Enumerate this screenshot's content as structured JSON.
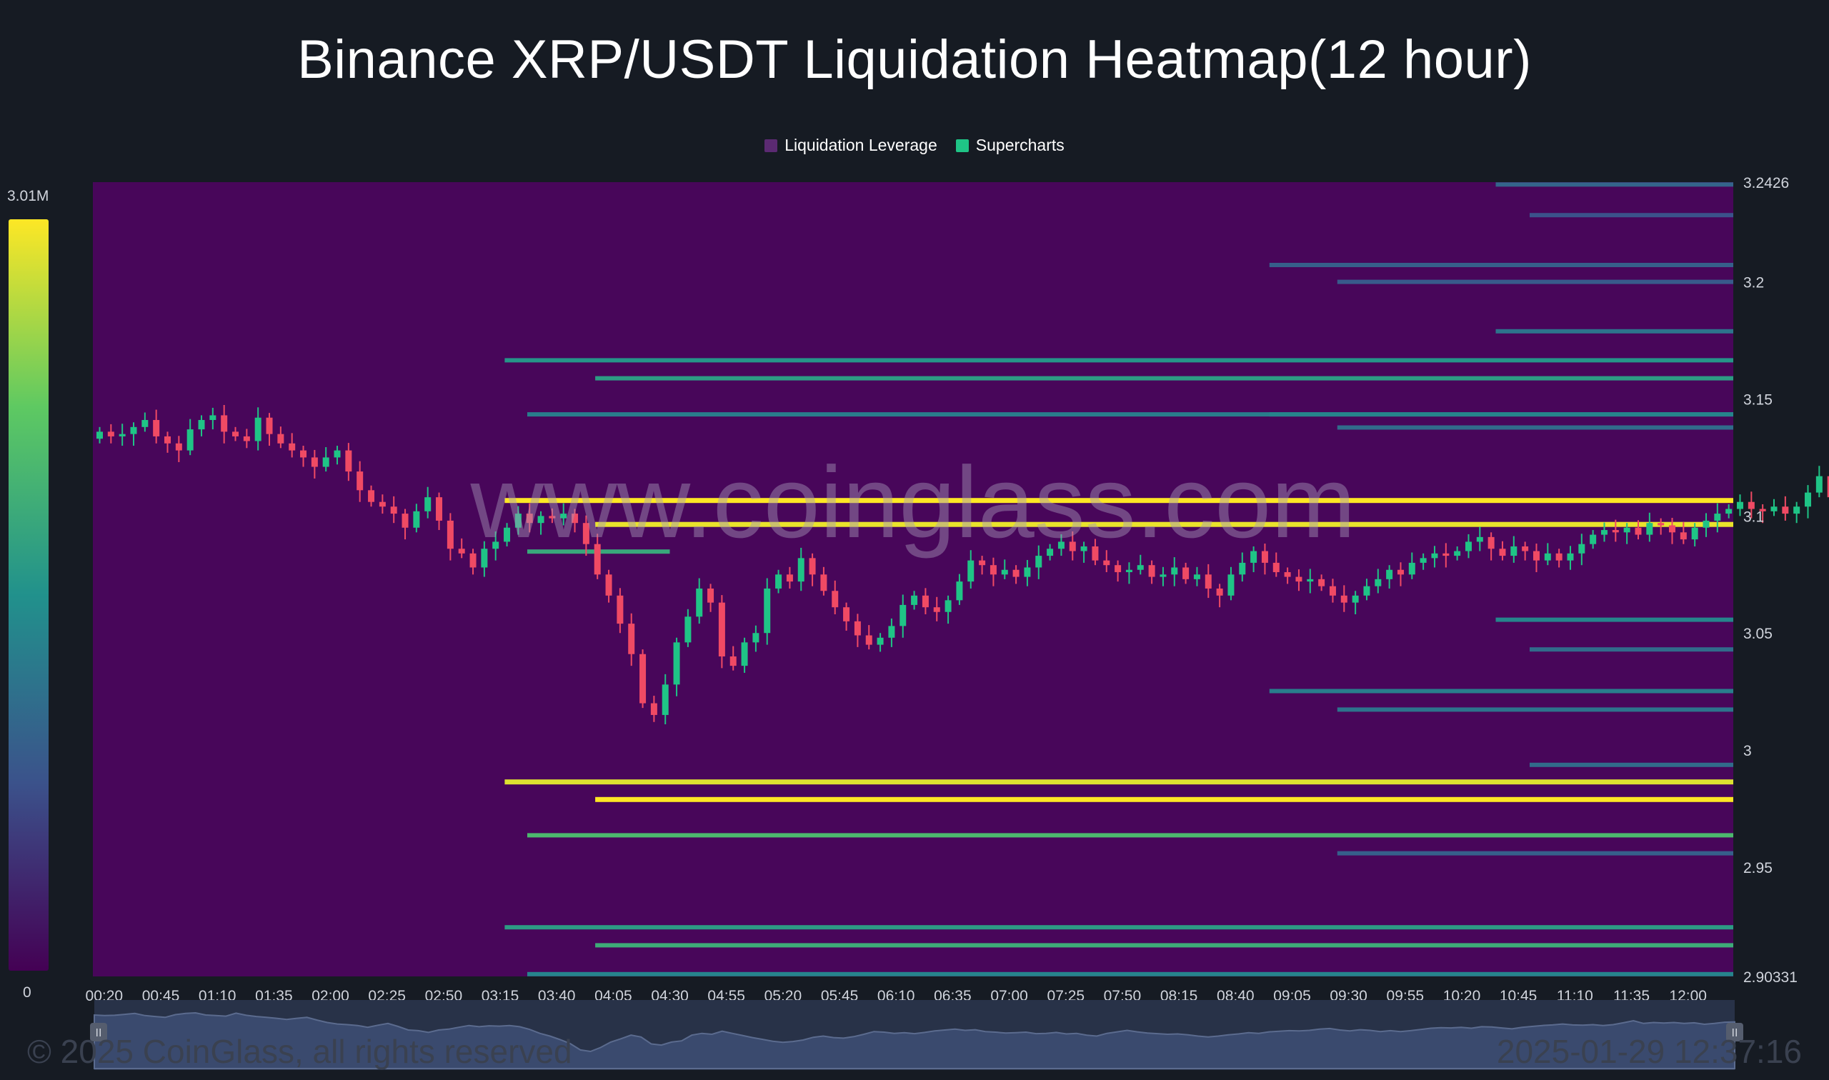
{
  "title": "Binance XRP/USDT Liquidation Heatmap(12 hour)",
  "legend": [
    {
      "label": "Liquidation Leverage",
      "color": "#5b2a72"
    },
    {
      "label": "Supercharts",
      "color": "#1fc486"
    }
  ],
  "colorbar": {
    "max_label": "3.01M",
    "min_label": "0"
  },
  "watermark": "www.coinglass.com",
  "footer": {
    "copyright": "© 2025 CoinGlass, all rights reserved",
    "timestamp": "2025-01-29 12:37:16"
  },
  "colors": {
    "background": "#161b23",
    "heatmap_base": "#48065a",
    "up_candle": "#1fc486",
    "down_candle": "#f04a64"
  },
  "chart_data": {
    "type": "heatmap",
    "title": "Binance XRP/USDT Liquidation Heatmap(12 hour)",
    "x_ticks": [
      "00:20",
      "00:45",
      "01:10",
      "01:35",
      "02:00",
      "02:25",
      "02:50",
      "03:15",
      "03:40",
      "04:05",
      "04:30",
      "04:55",
      "05:20",
      "05:45",
      "06:10",
      "06:35",
      "07:00",
      "07:25",
      "07:50",
      "08:15",
      "08:40",
      "09:05",
      "09:30",
      "09:55",
      "10:20",
      "10:45",
      "11:10",
      "11:35",
      "12:00"
    ],
    "y_ticks": [
      3.2426,
      3.2,
      3.15,
      3.1,
      3.05,
      3,
      2.95,
      2.90331
    ],
    "ylim": [
      2.90331,
      3.2426
    ],
    "xlim_minutes": [
      15,
      740
    ],
    "liquidation_levels": [
      {
        "price": 3.2416,
        "start_min": 635,
        "intensity": 0.32
      },
      {
        "price": 3.2285,
        "start_min": 650,
        "intensity": 0.25
      },
      {
        "price": 3.2072,
        "start_min": 535,
        "intensity": 0.3
      },
      {
        "price": 3.2,
        "start_min": 565,
        "intensity": 0.28
      },
      {
        "price": 3.1789,
        "start_min": 635,
        "intensity": 0.38
      },
      {
        "price": 3.1665,
        "start_min": 197,
        "intensity": 0.52
      },
      {
        "price": 3.1588,
        "start_min": 237,
        "intensity": 0.55
      },
      {
        "price": 3.1434,
        "start_min": 207,
        "intensity": 0.42
      },
      {
        "price": 3.1434,
        "start_min": 535,
        "intensity": 0.45
      },
      {
        "price": 3.1378,
        "start_min": 565,
        "intensity": 0.35
      },
      {
        "price": 3.1066,
        "start_min": 197,
        "intensity": 1.0
      },
      {
        "price": 3.0964,
        "start_min": 237,
        "intensity": 0.97
      },
      {
        "price": 3.0848,
        "start_min": 207,
        "end_min": 270,
        "intensity": 0.6
      },
      {
        "price": 3.0557,
        "start_min": 635,
        "intensity": 0.45
      },
      {
        "price": 3.043,
        "start_min": 650,
        "intensity": 0.35
      },
      {
        "price": 3.0252,
        "start_min": 535,
        "intensity": 0.42
      },
      {
        "price": 3.0173,
        "start_min": 565,
        "intensity": 0.38
      },
      {
        "price": 2.9937,
        "start_min": 650,
        "intensity": 0.35
      },
      {
        "price": 2.9864,
        "start_min": 197,
        "intensity": 0.95
      },
      {
        "price": 2.9789,
        "start_min": 237,
        "intensity": 1.0
      },
      {
        "price": 2.9636,
        "start_min": 207,
        "intensity": 0.68
      },
      {
        "price": 2.9559,
        "start_min": 565,
        "intensity": 0.3
      },
      {
        "price": 2.9243,
        "start_min": 197,
        "intensity": 0.55
      },
      {
        "price": 2.9166,
        "start_min": 237,
        "intensity": 0.62
      },
      {
        "price": 2.9043,
        "start_min": 207,
        "intensity": 0.45
      }
    ],
    "candles_close": [
      3.136,
      3.134,
      3.135,
      3.138,
      3.141,
      3.134,
      3.131,
      3.128,
      3.137,
      3.141,
      3.143,
      3.136,
      3.134,
      3.132,
      3.142,
      3.135,
      3.131,
      3.128,
      3.125,
      3.121,
      3.125,
      3.128,
      3.119,
      3.111,
      3.106,
      3.104,
      3.101,
      3.095,
      3.102,
      3.108,
      3.098,
      3.086,
      3.084,
      3.078,
      3.086,
      3.089,
      3.095,
      3.101,
      3.097,
      3.1,
      3.099,
      3.101,
      3.097,
      3.088,
      3.075,
      3.066,
      3.054,
      3.041,
      3.02,
      3.015,
      3.028,
      3.046,
      3.057,
      3.069,
      3.063,
      3.04,
      3.036,
      3.046,
      3.05,
      3.069,
      3.075,
      3.072,
      3.082,
      3.075,
      3.068,
      3.061,
      3.055,
      3.049,
      3.045,
      3.048,
      3.053,
      3.062,
      3.066,
      3.061,
      3.059,
      3.064,
      3.072,
      3.081,
      3.079,
      3.075,
      3.077,
      3.074,
      3.078,
      3.083,
      3.086,
      3.089,
      3.085,
      3.087,
      3.081,
      3.079,
      3.076,
      3.077,
      3.079,
      3.074,
      3.075,
      3.078,
      3.073,
      3.075,
      3.069,
      3.066,
      3.075,
      3.08,
      3.085,
      3.08,
      3.076,
      3.074,
      3.072,
      3.073,
      3.07,
      3.066,
      3.063,
      3.066,
      3.07,
      3.073,
      3.077,
      3.075,
      3.08,
      3.082,
      3.084,
      3.083,
      3.085,
      3.089,
      3.091,
      3.086,
      3.083,
      3.087,
      3.085,
      3.081,
      3.084,
      3.081,
      3.084,
      3.088,
      3.092,
      3.094,
      3.093,
      3.095,
      3.092,
      3.097,
      3.096,
      3.093,
      3.09,
      3.095,
      3.098,
      3.101,
      3.103,
      3.106,
      3.103,
      3.102,
      3.104,
      3.101,
      3.104,
      3.11,
      3.117,
      3.108,
      3.111,
      3.109,
      3.111,
      3.108,
      3.11,
      3.105,
      3.108,
      3.112,
      3.113
    ]
  }
}
